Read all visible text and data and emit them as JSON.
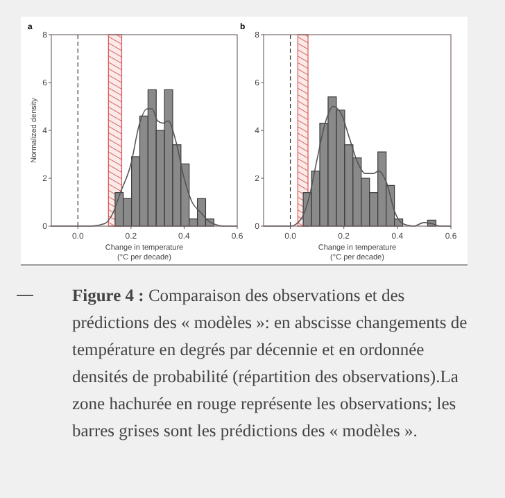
{
  "chart_data": [
    {
      "type": "histogram",
      "title": "a",
      "xlabel": "Change in temperature\n(°C per decade)",
      "ylabel": "Normalized density",
      "xlim": [
        -0.1,
        0.6
      ],
      "xticks": [
        {
          "value": 0,
          "label": "0.0"
        },
        0.2,
        0.4,
        0.6
      ],
      "ylim": [
        0,
        8
      ],
      "yticks": [
        0,
        2,
        4,
        6,
        8
      ],
      "grid": false,
      "series": [
        {
          "type": "histogram",
          "color": "#8a8a8a",
          "bins": [
            0.14,
            0.171,
            0.202,
            0.233,
            0.264,
            0.295,
            0.326,
            0.357,
            0.388,
            0.419,
            0.45,
            0.481,
            0.512
          ],
          "values": [
            1.4,
            1.15,
            2.9,
            4.6,
            5.7,
            4.0,
            5.7,
            3.4,
            2.6,
            0.3,
            1.15,
            0.3
          ]
        },
        {
          "type": "line",
          "color": "#555555",
          "x": [
            -0.1,
            0.05,
            0.1,
            0.13,
            0.16,
            0.2,
            0.23,
            0.26,
            0.28,
            0.3,
            0.32,
            0.34,
            0.37,
            0.4,
            0.43,
            0.46,
            0.5,
            0.55,
            0.6
          ],
          "values": [
            0,
            0,
            0.1,
            0.5,
            1.4,
            2.6,
            4.2,
            4.9,
            4.9,
            4.4,
            4.3,
            4.4,
            3.5,
            2.0,
            1.0,
            0.6,
            0.15,
            0,
            0
          ]
        }
      ],
      "bands": [
        {
          "axis": "x",
          "from": 0.115,
          "to": 0.165,
          "color": "#d9534f"
        }
      ],
      "ref_lines": [
        {
          "axis": "x",
          "value": 0,
          "line_style": "dashed",
          "color": "#333333"
        }
      ]
    },
    {
      "type": "histogram",
      "title": "b",
      "xlabel": "Change in temperature\n(°C per decade)",
      "xlim": [
        -0.1,
        0.6
      ],
      "xticks": [
        {
          "value": 0,
          "label": "0.0"
        },
        0.2,
        0.4,
        0.6
      ],
      "ylim": [
        0,
        8
      ],
      "yticks": [
        0,
        2,
        4,
        6,
        8
      ],
      "grid": false,
      "series": [
        {
          "type": "histogram",
          "color": "#8a8a8a",
          "bins": [
            0.048,
            0.079,
            0.11,
            0.141,
            0.172,
            0.203,
            0.234,
            0.265,
            0.296,
            0.327,
            0.358,
            0.389,
            0.42,
            0.451,
            0.482,
            0.513,
            0.544
          ],
          "values": [
            1.4,
            2.3,
            4.3,
            5.4,
            4.85,
            3.4,
            2.85,
            2.0,
            1.4,
            3.1,
            1.7,
            0.3,
            0,
            0,
            0,
            0.25
          ]
        },
        {
          "type": "line",
          "color": "#555555",
          "x": [
            -0.1,
            0,
            0.04,
            0.07,
            0.1,
            0.13,
            0.16,
            0.19,
            0.22,
            0.25,
            0.28,
            0.31,
            0.33,
            0.36,
            0.39,
            0.42,
            0.46,
            0.5,
            0.53,
            0.56,
            0.6
          ],
          "values": [
            0,
            0,
            0.3,
            1.2,
            2.8,
            4.3,
            5.0,
            4.7,
            3.7,
            2.7,
            2.2,
            2.2,
            2.3,
            1.8,
            0.6,
            0.1,
            0,
            0.15,
            0.1,
            0,
            0
          ]
        }
      ],
      "bands": [
        {
          "axis": "x",
          "from": 0.028,
          "to": 0.066,
          "color": "#d9534f"
        }
      ],
      "ref_lines": [
        {
          "axis": "x",
          "value": 0,
          "line_style": "dashed",
          "color": "#333333"
        }
      ]
    },
    {
      "type": "other",
      "title": "Figure 4 :",
      "annotations": [
        "Comparaison des observations et des prédictions des « modèles »: en abscisse changements de température en degrés par décennie et en ordonnée densités de probabilité (répartition des observations).La zone hachurée en rouge représente les observations; les barres grises sont les prédictions des « modèles »."
      ]
    }
  ]
}
